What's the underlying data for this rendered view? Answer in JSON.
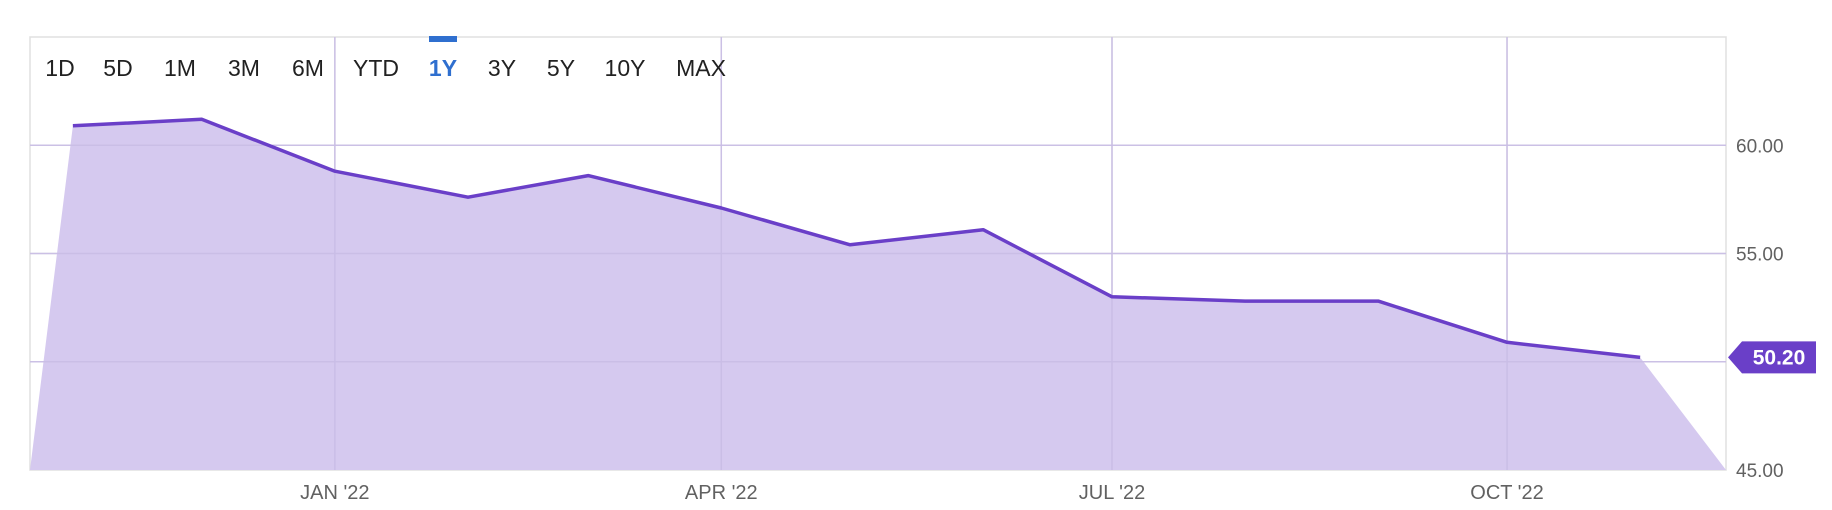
{
  "range_selector": {
    "options": [
      "1D",
      "5D",
      "1M",
      "3M",
      "6M",
      "YTD",
      "1Y",
      "3Y",
      "5Y",
      "10Y",
      "MAX"
    ],
    "active": "1Y"
  },
  "chart_data": {
    "type": "area",
    "x": [
      "2021-11-01",
      "2021-12-01",
      "2022-01-01",
      "2022-02-01",
      "2022-03-01",
      "2022-04-01",
      "2022-05-01",
      "2022-06-01",
      "2022-07-01",
      "2022-08-01",
      "2022-09-01",
      "2022-10-01",
      "2022-11-01"
    ],
    "series": [
      {
        "values": [
          60.9,
          61.2,
          58.8,
          57.6,
          58.6,
          57.1,
          55.4,
          56.1,
          53.0,
          52.8,
          52.8,
          50.9,
          50.2
        ]
      }
    ],
    "x_tick_labels": [
      "JAN '22",
      "APR '22",
      "JUL '22",
      "OCT '22"
    ],
    "x_tick_dates": [
      "2022-01-01",
      "2022-04-01",
      "2022-07-01",
      "2022-10-01"
    ],
    "y_tick_labels": [
      "60.00",
      "55.00",
      "50.00",
      "45.00"
    ],
    "y_tick_values": [
      60,
      55,
      50,
      45
    ],
    "ylim": [
      45,
      65
    ],
    "xlim": [
      "2021-10-22",
      "2022-11-21"
    ],
    "y_axis_side": "right",
    "grid": true,
    "last_value_label": "50.20",
    "colors": {
      "line": "#6a3fc8",
      "fill": "#d5c9ef",
      "badge": "#6a3fc8",
      "grid": "#e0e0e0",
      "active": "#2f6fcf"
    }
  }
}
